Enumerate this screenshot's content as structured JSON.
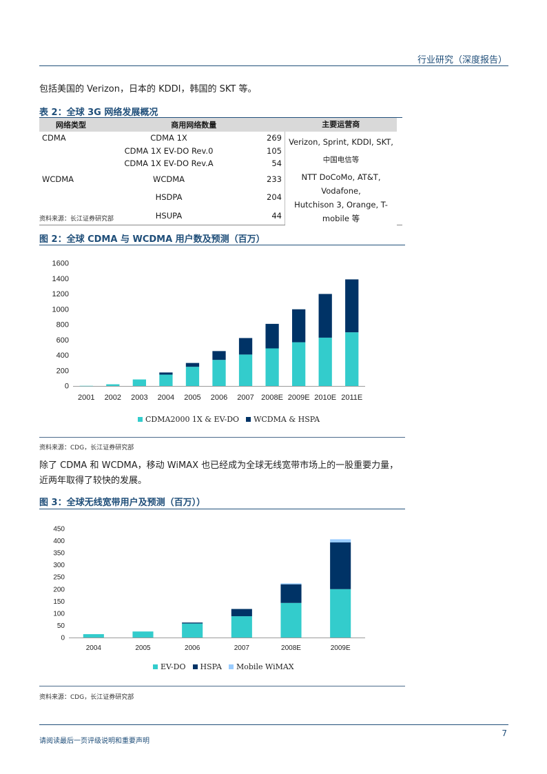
{
  "header": {
    "title": "行业研究（深度报告）"
  },
  "intro": {
    "text": "包括美国的 Verizon，日本的 KDDI，韩国的 SKT 等。"
  },
  "table2": {
    "caption": "表 2：全球 3G 网络发展概况",
    "columns": [
      "网络类型",
      "商用网络数量",
      "",
      "主要运营商"
    ],
    "rows": [
      {
        "type": "CDMA",
        "name": "CDMA 1X",
        "count": "269"
      },
      {
        "type": "",
        "name": "CDMA 1X EV-DO Rev.0",
        "count": "105"
      },
      {
        "type": "",
        "name": "CDMA 1X EV-DO Rev.A",
        "count": "54"
      },
      {
        "type": "WCDMA",
        "name": "WCDMA",
        "count": "233"
      },
      {
        "type": "",
        "name": "HSDPA",
        "count": "204"
      },
      {
        "type": "",
        "name": "HSUPA",
        "count": "44"
      }
    ],
    "operators_cdma": [
      "Verizon, Sprint, KDDI, SKT,",
      "中国电信等"
    ],
    "operators_wcdma": [
      "NTT DoCoMo, AT&T, Vodafone,",
      "Hutchison 3, Orange, T-mobile 等"
    ],
    "source": "资料来源：长江证券研究部"
  },
  "figure2": {
    "caption": "图 2：全球 CDMA 与 WCDMA 用户数及预测（百万）",
    "source": "资料来源：CDG，长江证券研究部"
  },
  "paragraph2": {
    "line1": "除了 CDMA 和 WCDMA，移动 WiMAX 也已经成为全球无线宽带市场上的一股重要力量，",
    "line2": "近两年取得了较快的发展。"
  },
  "figure3": {
    "caption": "图 3：全球无线宽带用户及预测（百万））",
    "source": "资料来源：CDG，长江证券研究部"
  },
  "chart_data": [
    {
      "type": "bar",
      "stacked": true,
      "categories": [
        "2001",
        "2002",
        "2003",
        "2004",
        "2005",
        "2006",
        "2007",
        "2008E",
        "2009E",
        "2010E",
        "2011E"
      ],
      "series": [
        {
          "name": "CDMA2000 1X & EV-DO",
          "color": "#33cccc",
          "values": [
            2,
            22,
            85,
            148,
            250,
            340,
            410,
            490,
            570,
            630,
            700
          ]
        },
        {
          "name": "WCDMA & HSPA",
          "color": "#003366",
          "values": [
            0,
            0,
            0,
            28,
            50,
            115,
            215,
            320,
            430,
            570,
            690
          ]
        }
      ],
      "ylim": [
        0,
        1600
      ],
      "yticks": [
        0,
        200,
        400,
        600,
        800,
        1000,
        1200,
        1400,
        1600
      ],
      "legend": "bottom"
    },
    {
      "type": "bar",
      "stacked": true,
      "categories": [
        "2004",
        "2005",
        "2006",
        "2007",
        "2008E",
        "2009E"
      ],
      "series": [
        {
          "name": "EV-DO",
          "color": "#33cccc",
          "values": [
            14,
            25,
            58,
            88,
            143,
            200
          ]
        },
        {
          "name": "HSPA",
          "color": "#003366",
          "values": [
            0,
            0,
            4,
            30,
            77,
            193
          ]
        },
        {
          "name": "Mobile WiMAX",
          "color": "#99ccff",
          "values": [
            0,
            0,
            0,
            0,
            4,
            13
          ]
        }
      ],
      "ylim": [
        0,
        450
      ],
      "yticks": [
        0,
        50,
        100,
        150,
        200,
        250,
        300,
        350,
        400,
        450
      ],
      "legend": "bottom"
    }
  ],
  "footer": {
    "disclaimer": "请阅读最后一页评级说明和重要声明",
    "page": "7"
  }
}
